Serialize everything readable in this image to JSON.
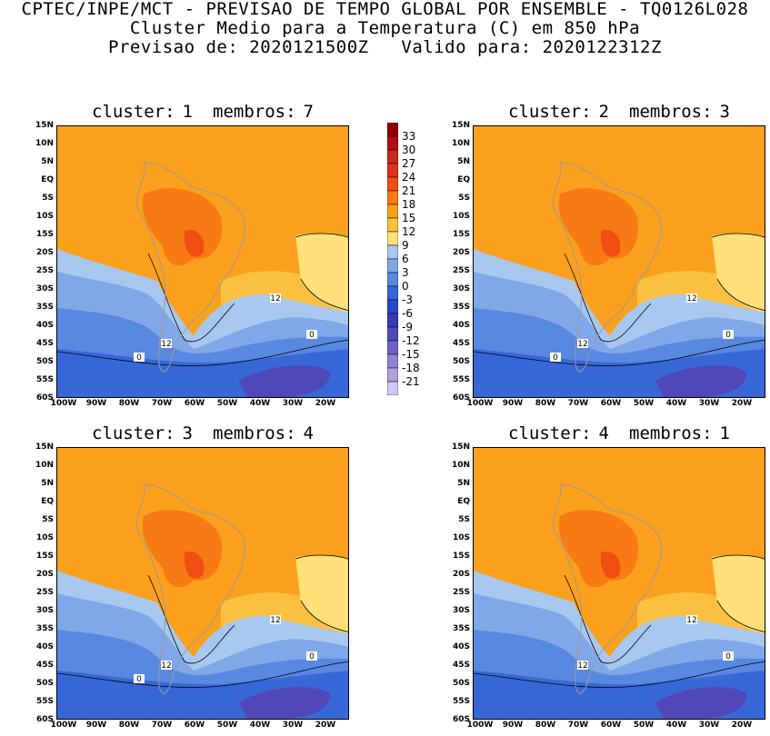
{
  "header": {
    "line1": "CPTEC/INPE/MCT - PREVISAO DE TEMPO GLOBAL POR ENSEMBLE - TQ0126L028",
    "line2": "Cluster Medio para a Temperatura (C) em 850 hPa",
    "line3": "Previsao de: 2020121500Z   Valido para: 2020122312Z"
  },
  "panels": [
    {
      "cluster_label": "cluster:",
      "cluster": "1",
      "members_label": "membros:",
      "members": "7",
      "contour_labels": [
        "12",
        "12",
        "0",
        "0"
      ]
    },
    {
      "cluster_label": "cluster:",
      "cluster": "2",
      "members_label": "membros:",
      "members": "3",
      "contour_labels": [
        "12",
        "12",
        "0",
        "0"
      ]
    },
    {
      "cluster_label": "cluster:",
      "cluster": "3",
      "members_label": "membros:",
      "members": "4",
      "contour_labels": [
        "12",
        "12",
        "0",
        "0"
      ]
    },
    {
      "cluster_label": "cluster:",
      "cluster": "4",
      "members_label": "membros:",
      "members": "1",
      "contour_labels": [
        "12",
        "12",
        "0"
      ]
    }
  ],
  "axes": {
    "lat_labels": [
      "15N",
      "10N",
      "5N",
      "EQ",
      "5S",
      "10S",
      "15S",
      "20S",
      "25S",
      "30S",
      "35S",
      "40S",
      "45S",
      "50S",
      "55S",
      "60S"
    ],
    "lon_labels": [
      "100W",
      "90W",
      "80W",
      "70W",
      "60W",
      "50W",
      "40W",
      "30W",
      "20W"
    ]
  },
  "colorbar": {
    "labels": [
      "33",
      "30",
      "27",
      "24",
      "21",
      "18",
      "15",
      "12",
      "9",
      "6",
      "3",
      "0",
      "-3",
      "-6",
      "-9",
      "-12",
      "-15",
      "-18",
      "-21"
    ],
    "colors": [
      "#8b0000",
      "#b01010",
      "#c8281e",
      "#e0301c",
      "#f04e12",
      "#f87a14",
      "#fba01c",
      "#fcc040",
      "#fde07a",
      "#a8c8f0",
      "#80a8e8",
      "#5888e0",
      "#3868d8",
      "#2848c8",
      "#3838b8",
      "#5048b8",
      "#7060c8",
      "#9080d8",
      "#b0a0e0",
      "#d0c8f0"
    ]
  }
}
